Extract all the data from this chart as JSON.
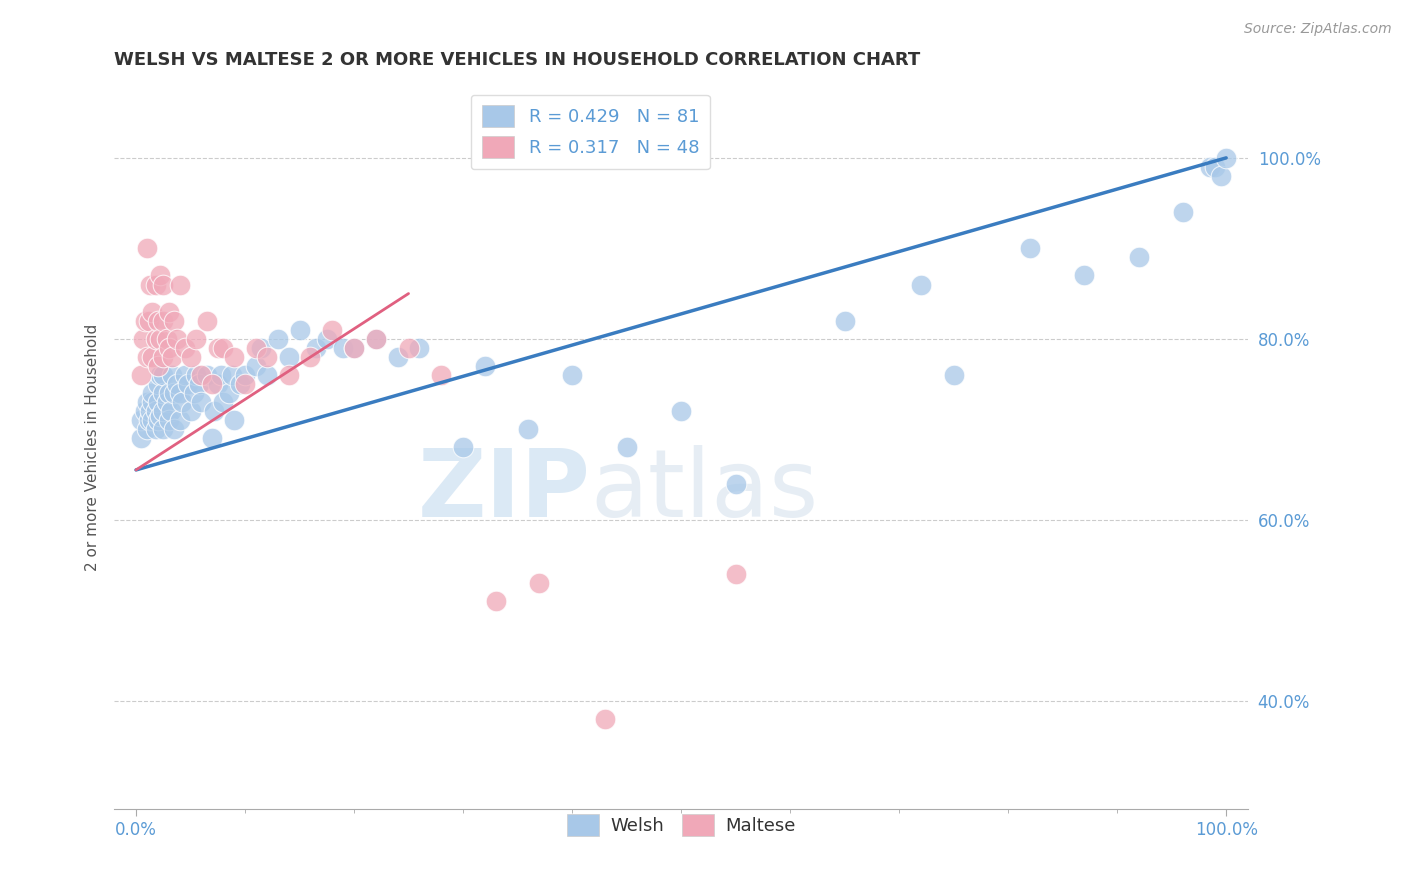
{
  "title": "WELSH VS MALTESE 2 OR MORE VEHICLES IN HOUSEHOLD CORRELATION CHART",
  "source_text": "Source: ZipAtlas.com",
  "ylabel": "2 or more Vehicles in Household",
  "watermark_zip": "ZIP",
  "watermark_atlas": "atlas",
  "welsh_R": 0.429,
  "welsh_N": 81,
  "maltese_R": 0.317,
  "maltese_N": 48,
  "welsh_color": "#A8C8E8",
  "maltese_color": "#F0A8B8",
  "welsh_line_color": "#3A7CC0",
  "maltese_line_color": "#E06080",
  "background_color": "#FFFFFF",
  "tick_color": "#5B9BD5",
  "title_color": "#333333",
  "ylabel_color": "#555555",
  "grid_color": "#CCCCCC",
  "xlim": [
    -0.02,
    1.02
  ],
  "ylim": [
    0.28,
    1.08
  ],
  "yticks": [
    0.4,
    0.6,
    0.8,
    1.0
  ],
  "ytick_labels": [
    "40.0%",
    "60.0%",
    "80.0%",
    "100.0%"
  ],
  "welsh_x": [
    0.005,
    0.005,
    0.008,
    0.01,
    0.01,
    0.012,
    0.013,
    0.015,
    0.015,
    0.015,
    0.018,
    0.018,
    0.02,
    0.02,
    0.02,
    0.022,
    0.022,
    0.025,
    0.025,
    0.025,
    0.025,
    0.028,
    0.03,
    0.03,
    0.032,
    0.033,
    0.035,
    0.035,
    0.038,
    0.04,
    0.04,
    0.042,
    0.045,
    0.048,
    0.05,
    0.053,
    0.055,
    0.058,
    0.06,
    0.065,
    0.07,
    0.072,
    0.075,
    0.078,
    0.08,
    0.085,
    0.088,
    0.09,
    0.095,
    0.1,
    0.11,
    0.115,
    0.12,
    0.13,
    0.14,
    0.15,
    0.165,
    0.175,
    0.19,
    0.2,
    0.22,
    0.24,
    0.26,
    0.3,
    0.32,
    0.36,
    0.4,
    0.45,
    0.5,
    0.55,
    0.65,
    0.72,
    0.75,
    0.82,
    0.87,
    0.92,
    0.96,
    0.985,
    0.99,
    0.995,
    1.0
  ],
  "welsh_y": [
    0.69,
    0.71,
    0.72,
    0.7,
    0.73,
    0.71,
    0.72,
    0.71,
    0.73,
    0.74,
    0.72,
    0.7,
    0.71,
    0.73,
    0.75,
    0.715,
    0.76,
    0.7,
    0.72,
    0.74,
    0.76,
    0.73,
    0.71,
    0.74,
    0.72,
    0.76,
    0.7,
    0.74,
    0.75,
    0.71,
    0.74,
    0.73,
    0.76,
    0.75,
    0.72,
    0.74,
    0.76,
    0.75,
    0.73,
    0.76,
    0.69,
    0.72,
    0.75,
    0.76,
    0.73,
    0.74,
    0.76,
    0.71,
    0.75,
    0.76,
    0.77,
    0.79,
    0.76,
    0.8,
    0.78,
    0.81,
    0.79,
    0.8,
    0.79,
    0.79,
    0.8,
    0.78,
    0.79,
    0.68,
    0.77,
    0.7,
    0.76,
    0.68,
    0.72,
    0.64,
    0.82,
    0.86,
    0.76,
    0.9,
    0.87,
    0.89,
    0.94,
    0.99,
    0.99,
    0.98,
    1.0
  ],
  "maltese_x": [
    0.005,
    0.006,
    0.008,
    0.01,
    0.01,
    0.012,
    0.013,
    0.015,
    0.015,
    0.018,
    0.018,
    0.02,
    0.02,
    0.022,
    0.022,
    0.025,
    0.025,
    0.025,
    0.028,
    0.03,
    0.03,
    0.033,
    0.035,
    0.038,
    0.04,
    0.045,
    0.05,
    0.055,
    0.06,
    0.065,
    0.07,
    0.075,
    0.08,
    0.09,
    0.1,
    0.11,
    0.12,
    0.14,
    0.16,
    0.18,
    0.2,
    0.22,
    0.25,
    0.28,
    0.33,
    0.37,
    0.43,
    0.55
  ],
  "maltese_y": [
    0.76,
    0.8,
    0.82,
    0.78,
    0.9,
    0.82,
    0.86,
    0.78,
    0.83,
    0.8,
    0.86,
    0.77,
    0.82,
    0.8,
    0.87,
    0.78,
    0.82,
    0.86,
    0.8,
    0.79,
    0.83,
    0.78,
    0.82,
    0.8,
    0.86,
    0.79,
    0.78,
    0.8,
    0.76,
    0.82,
    0.75,
    0.79,
    0.79,
    0.78,
    0.75,
    0.79,
    0.78,
    0.76,
    0.78,
    0.81,
    0.79,
    0.8,
    0.79,
    0.76,
    0.51,
    0.53,
    0.38,
    0.54
  ],
  "welsh_line_x0": 0.0,
  "welsh_line_y0": 0.655,
  "welsh_line_x1": 1.0,
  "welsh_line_y1": 1.0,
  "maltese_line_x0": 0.0,
  "maltese_line_y0": 0.655,
  "maltese_line_x1": 0.25,
  "maltese_line_y1": 0.85
}
